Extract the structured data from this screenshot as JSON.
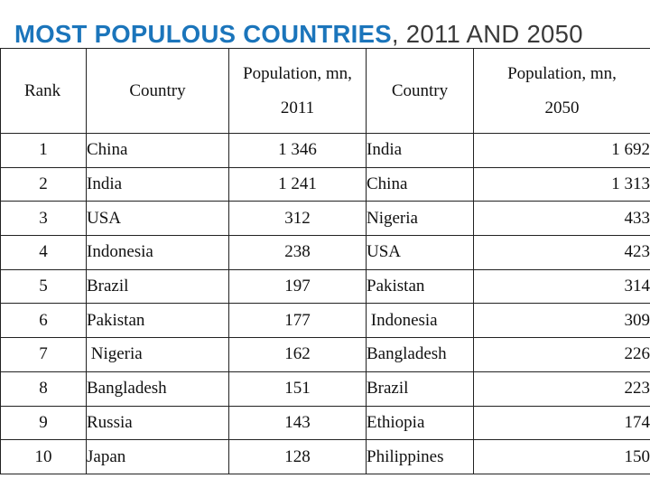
{
  "title": {
    "bold": "MOST POPULOUS COUNTRIES",
    "rest": ", 2011 AND 2050"
  },
  "table": {
    "headers": {
      "rank": "Rank",
      "country_2011": "Country",
      "pop_2011_line1": "Population, mn,",
      "pop_2011_line2": "2011",
      "country_2050": "Country",
      "pop_2050_line1": "Population, mn,",
      "pop_2050_line2": "2050"
    },
    "rows": [
      {
        "rank": "1",
        "country_2011": "China",
        "pop_2011": "1 346",
        "country_2050": "India",
        "pop_2050": "1 692"
      },
      {
        "rank": "2",
        "country_2011": "India",
        "pop_2011": "1 241",
        "country_2050": "China",
        "pop_2050": "1 313"
      },
      {
        "rank": "3",
        "country_2011": "USA",
        "pop_2011": "312",
        "country_2050": "Nigeria",
        "pop_2050": "433"
      },
      {
        "rank": "4",
        "country_2011": "Indonesia",
        "pop_2011": "238",
        "country_2050": "USA",
        "pop_2050": "423"
      },
      {
        "rank": "5",
        "country_2011": "Brazil",
        "pop_2011": "197",
        "country_2050": "Pakistan",
        "pop_2050": "314"
      },
      {
        "rank": "6",
        "country_2011": "Pakistan",
        "pop_2011": "177",
        "country_2050": " Indonesia",
        "pop_2050": "309"
      },
      {
        "rank": "7",
        "country_2011": " Nigeria",
        "pop_2011": "162",
        "country_2050": "Bangladesh",
        "pop_2050": "226"
      },
      {
        "rank": "8",
        "country_2011": "Bangladesh",
        "pop_2011": "151",
        "country_2050": "Brazil",
        "pop_2050": "223"
      },
      {
        "rank": "9",
        "country_2011": "Russia",
        "pop_2011": "143",
        "country_2050": "Ethiopia",
        "pop_2050": "174"
      },
      {
        "rank": "10",
        "country_2011": "Japan",
        "pop_2011": "128",
        "country_2050": "Philippines",
        "pop_2050": "150"
      }
    ]
  }
}
